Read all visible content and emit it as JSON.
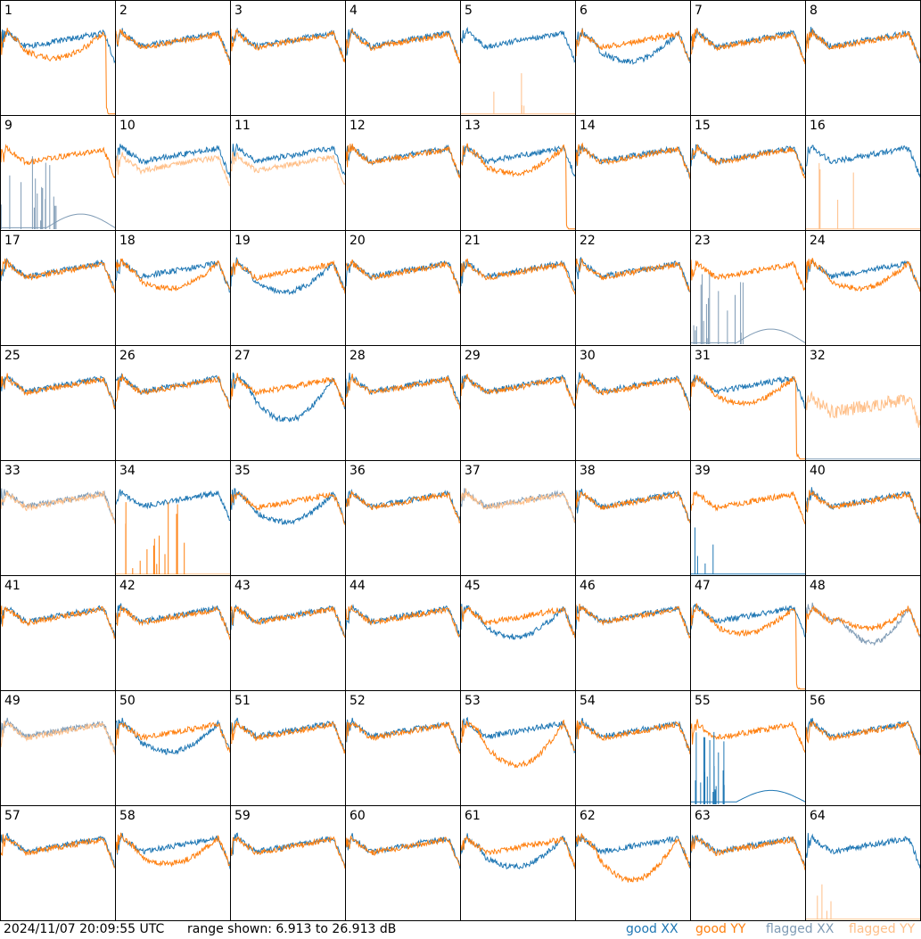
{
  "chart_data": {
    "type": "line",
    "layout": "8x8 small multiples",
    "tiles": [
      "1",
      "2",
      "3",
      "4",
      "5",
      "6",
      "7",
      "8",
      "9",
      "10",
      "11",
      "12",
      "13",
      "14",
      "15",
      "16",
      "17",
      "18",
      "19",
      "20",
      "21",
      "22",
      "23",
      "24",
      "25",
      "26",
      "27",
      "28",
      "29",
      "30",
      "31",
      "32",
      "33",
      "34",
      "35",
      "36",
      "37",
      "38",
      "39",
      "40",
      "41",
      "42",
      "43",
      "44",
      "45",
      "46",
      "47",
      "48",
      "49",
      "50",
      "51",
      "52",
      "53",
      "54",
      "55",
      "56",
      "57",
      "58",
      "59",
      "60",
      "61",
      "62",
      "63",
      "64"
    ],
    "ylim": [
      6.913,
      26.913
    ],
    "yunit": "dB",
    "series_legend": [
      {
        "name": "good XX",
        "color": "#1f77b4"
      },
      {
        "name": "good YY",
        "color": "#ff7f0e"
      },
      {
        "name": "flagged XX",
        "color": "#7f9bb5"
      },
      {
        "name": "flagged YY",
        "color": "#ffbf88"
      }
    ],
    "styles": {
      "normal": "Both polarizations overlapping, typical bandpass shape",
      "gapX": "XX lower than YY",
      "gapY": "YY lower than XX",
      "deadY": "YY near floor with spikes",
      "deadX": "XX near floor with spikes",
      "flagX": "XX flagged",
      "flagY": "YY flagged",
      "flagBoth": "Both flagged",
      "flagYonly": "Only flagged YY present"
    },
    "tile_styles": [
      "gapYdrop",
      "normal",
      "normal",
      "normal",
      "deadY",
      "gapX",
      "normal",
      "normal",
      "flagXdead",
      "flagY",
      "flagY",
      "normal",
      "gapYdrop",
      "normal",
      "normal",
      "deadY",
      "normal",
      "gapY",
      "gapX",
      "normal",
      "normal",
      "normal",
      "flagXdead",
      "gapY",
      "normal",
      "normal",
      "gapXbig",
      "normal",
      "normal",
      "normal",
      "gapYdrop",
      "flagYonly",
      "flagBoth",
      "deadYspike",
      "gapX",
      "normal",
      "flagBoth",
      "normal",
      "deadX",
      "normal",
      "normal",
      "normal",
      "normal",
      "normal",
      "gapX",
      "normal",
      "gapYdrop",
      "flagXY",
      "flagBoth",
      "gapX",
      "normal",
      "normal",
      "gapYbig",
      "normal",
      "deadXmid",
      "normal",
      "normal",
      "gapY",
      "normal",
      "normal",
      "gapX",
      "gapYbig",
      "normal",
      "deadY"
    ]
  },
  "footer": {
    "timestamp": "2024/11/07 20:09:55 UTC",
    "range": "range shown: 6.913 to 26.913 dB",
    "legend": {
      "good_xx": "good XX",
      "good_yy": "good YY",
      "flagged_xx": "flagged XX",
      "flagged_yy": "flagged YY"
    }
  }
}
